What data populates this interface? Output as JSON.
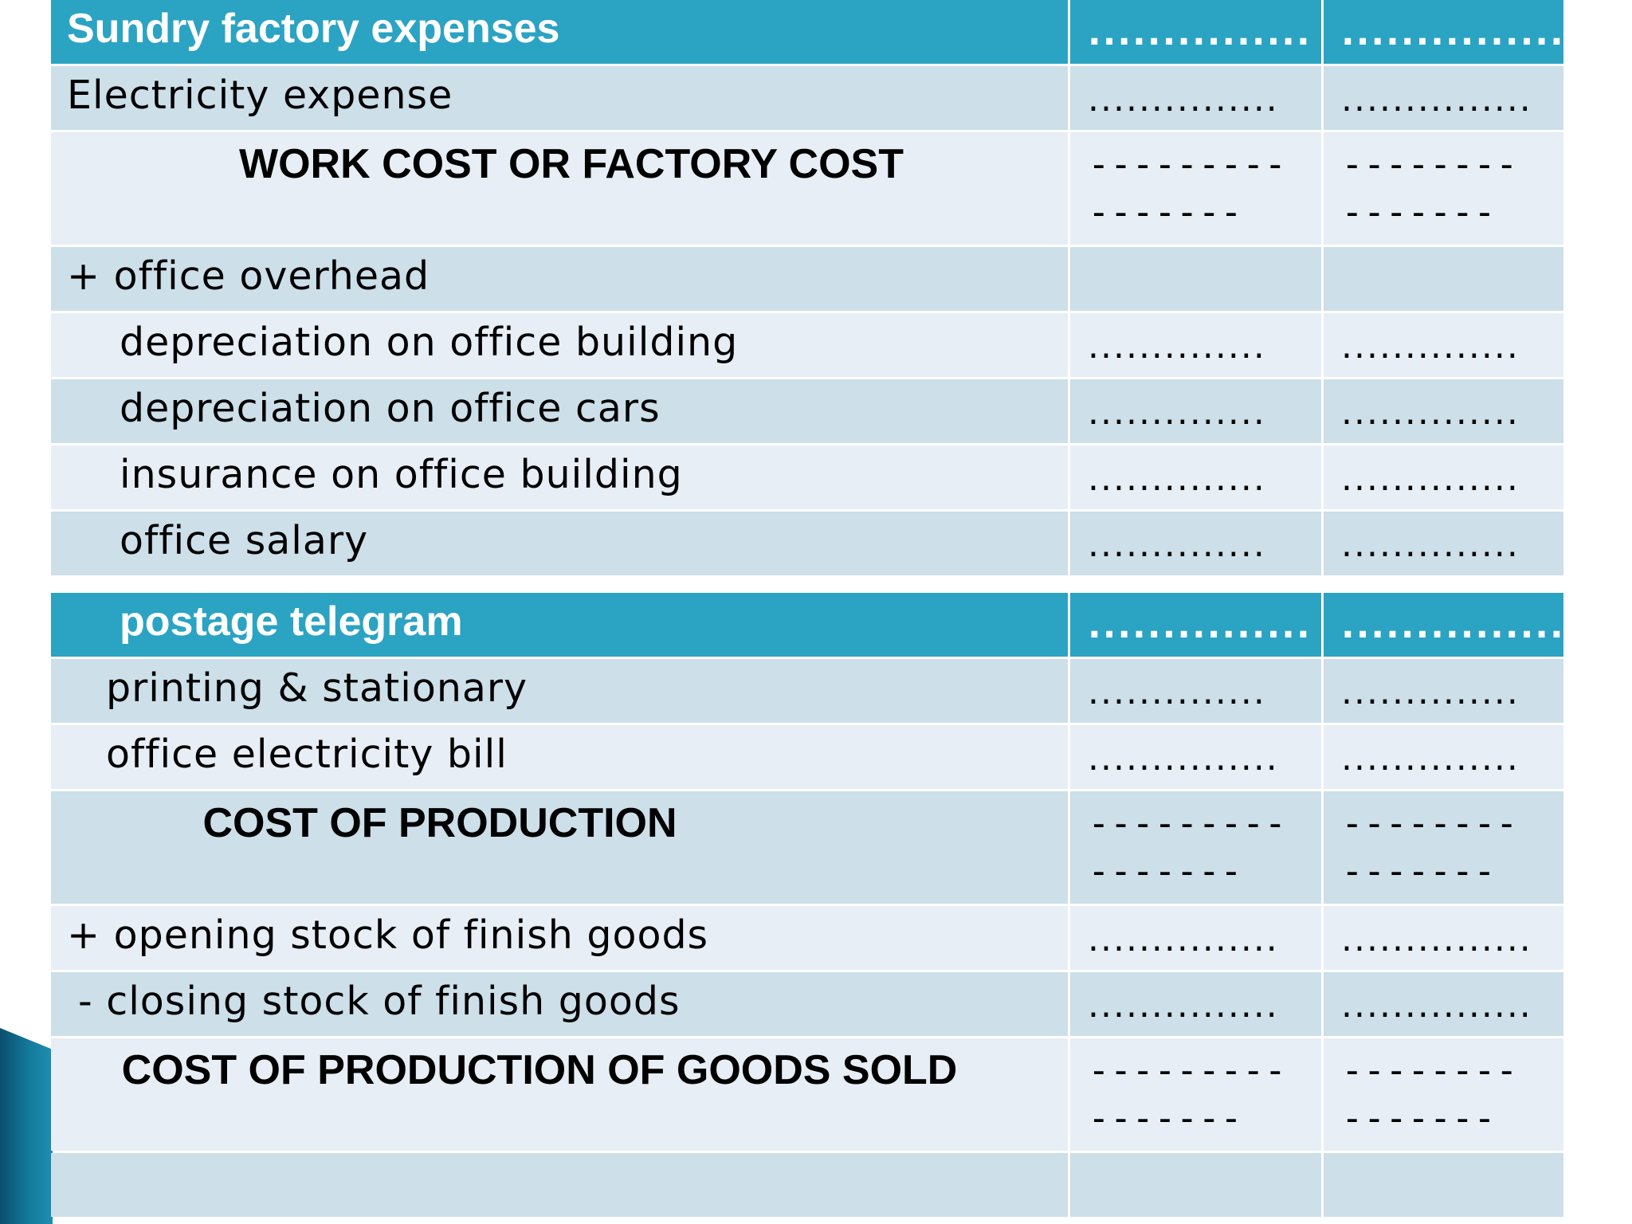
{
  "rows": [
    {
      "label": "Sundry factory expenses",
      "v1": "...............",
      "v2": "..............."
    },
    {
      "label": "Electricity expense",
      "v1": "...............",
      "v2": "..............."
    },
    {
      "label": "WORK COST OR FACTORY COST",
      "v1": "---------\n-------",
      "v2": "--------\n-------"
    },
    {
      "label": "+ office overhead",
      "v1": "",
      "v2": ""
    },
    {
      "label": "depreciation on office building",
      "v1": "..............",
      "v2": ".............."
    },
    {
      "label": "depreciation on office cars",
      "v1": "..............",
      "v2": ".............."
    },
    {
      "label": "insurance on office building",
      "v1": "..............",
      "v2": ".............."
    },
    {
      "label": "office salary",
      "v1": "..............",
      "v2": ".............."
    },
    {
      "label": "postage telegram",
      "v1": "...............",
      "v2": "..............."
    },
    {
      "label": "printing & stationary",
      "v1": "..............",
      "v2": ".............."
    },
    {
      "label": "office electricity bill",
      "v1": "...............",
      "v2": ".............."
    },
    {
      "label": "COST OF PRODUCTION",
      "v1": "---------\n-------",
      "v2": "--------\n-------"
    },
    {
      "label": "+ opening stock of finish goods",
      "v1": "...............",
      "v2": "..............."
    },
    {
      "label": "- closing stock of finish goods",
      "v1": "...............",
      "v2": "..............."
    },
    {
      "label": "COST OF PRODUCTION OF GOODS SOLD",
      "v1": "---------\n-------",
      "v2": "--------\n-------"
    },
    {
      "label": "",
      "v1": "",
      "v2": ""
    }
  ],
  "colors": {
    "header": "#2ba3c3",
    "row_dark": "#cddfe8",
    "row_light": "#e8eef5",
    "corner_accent": "#137a9c"
  }
}
